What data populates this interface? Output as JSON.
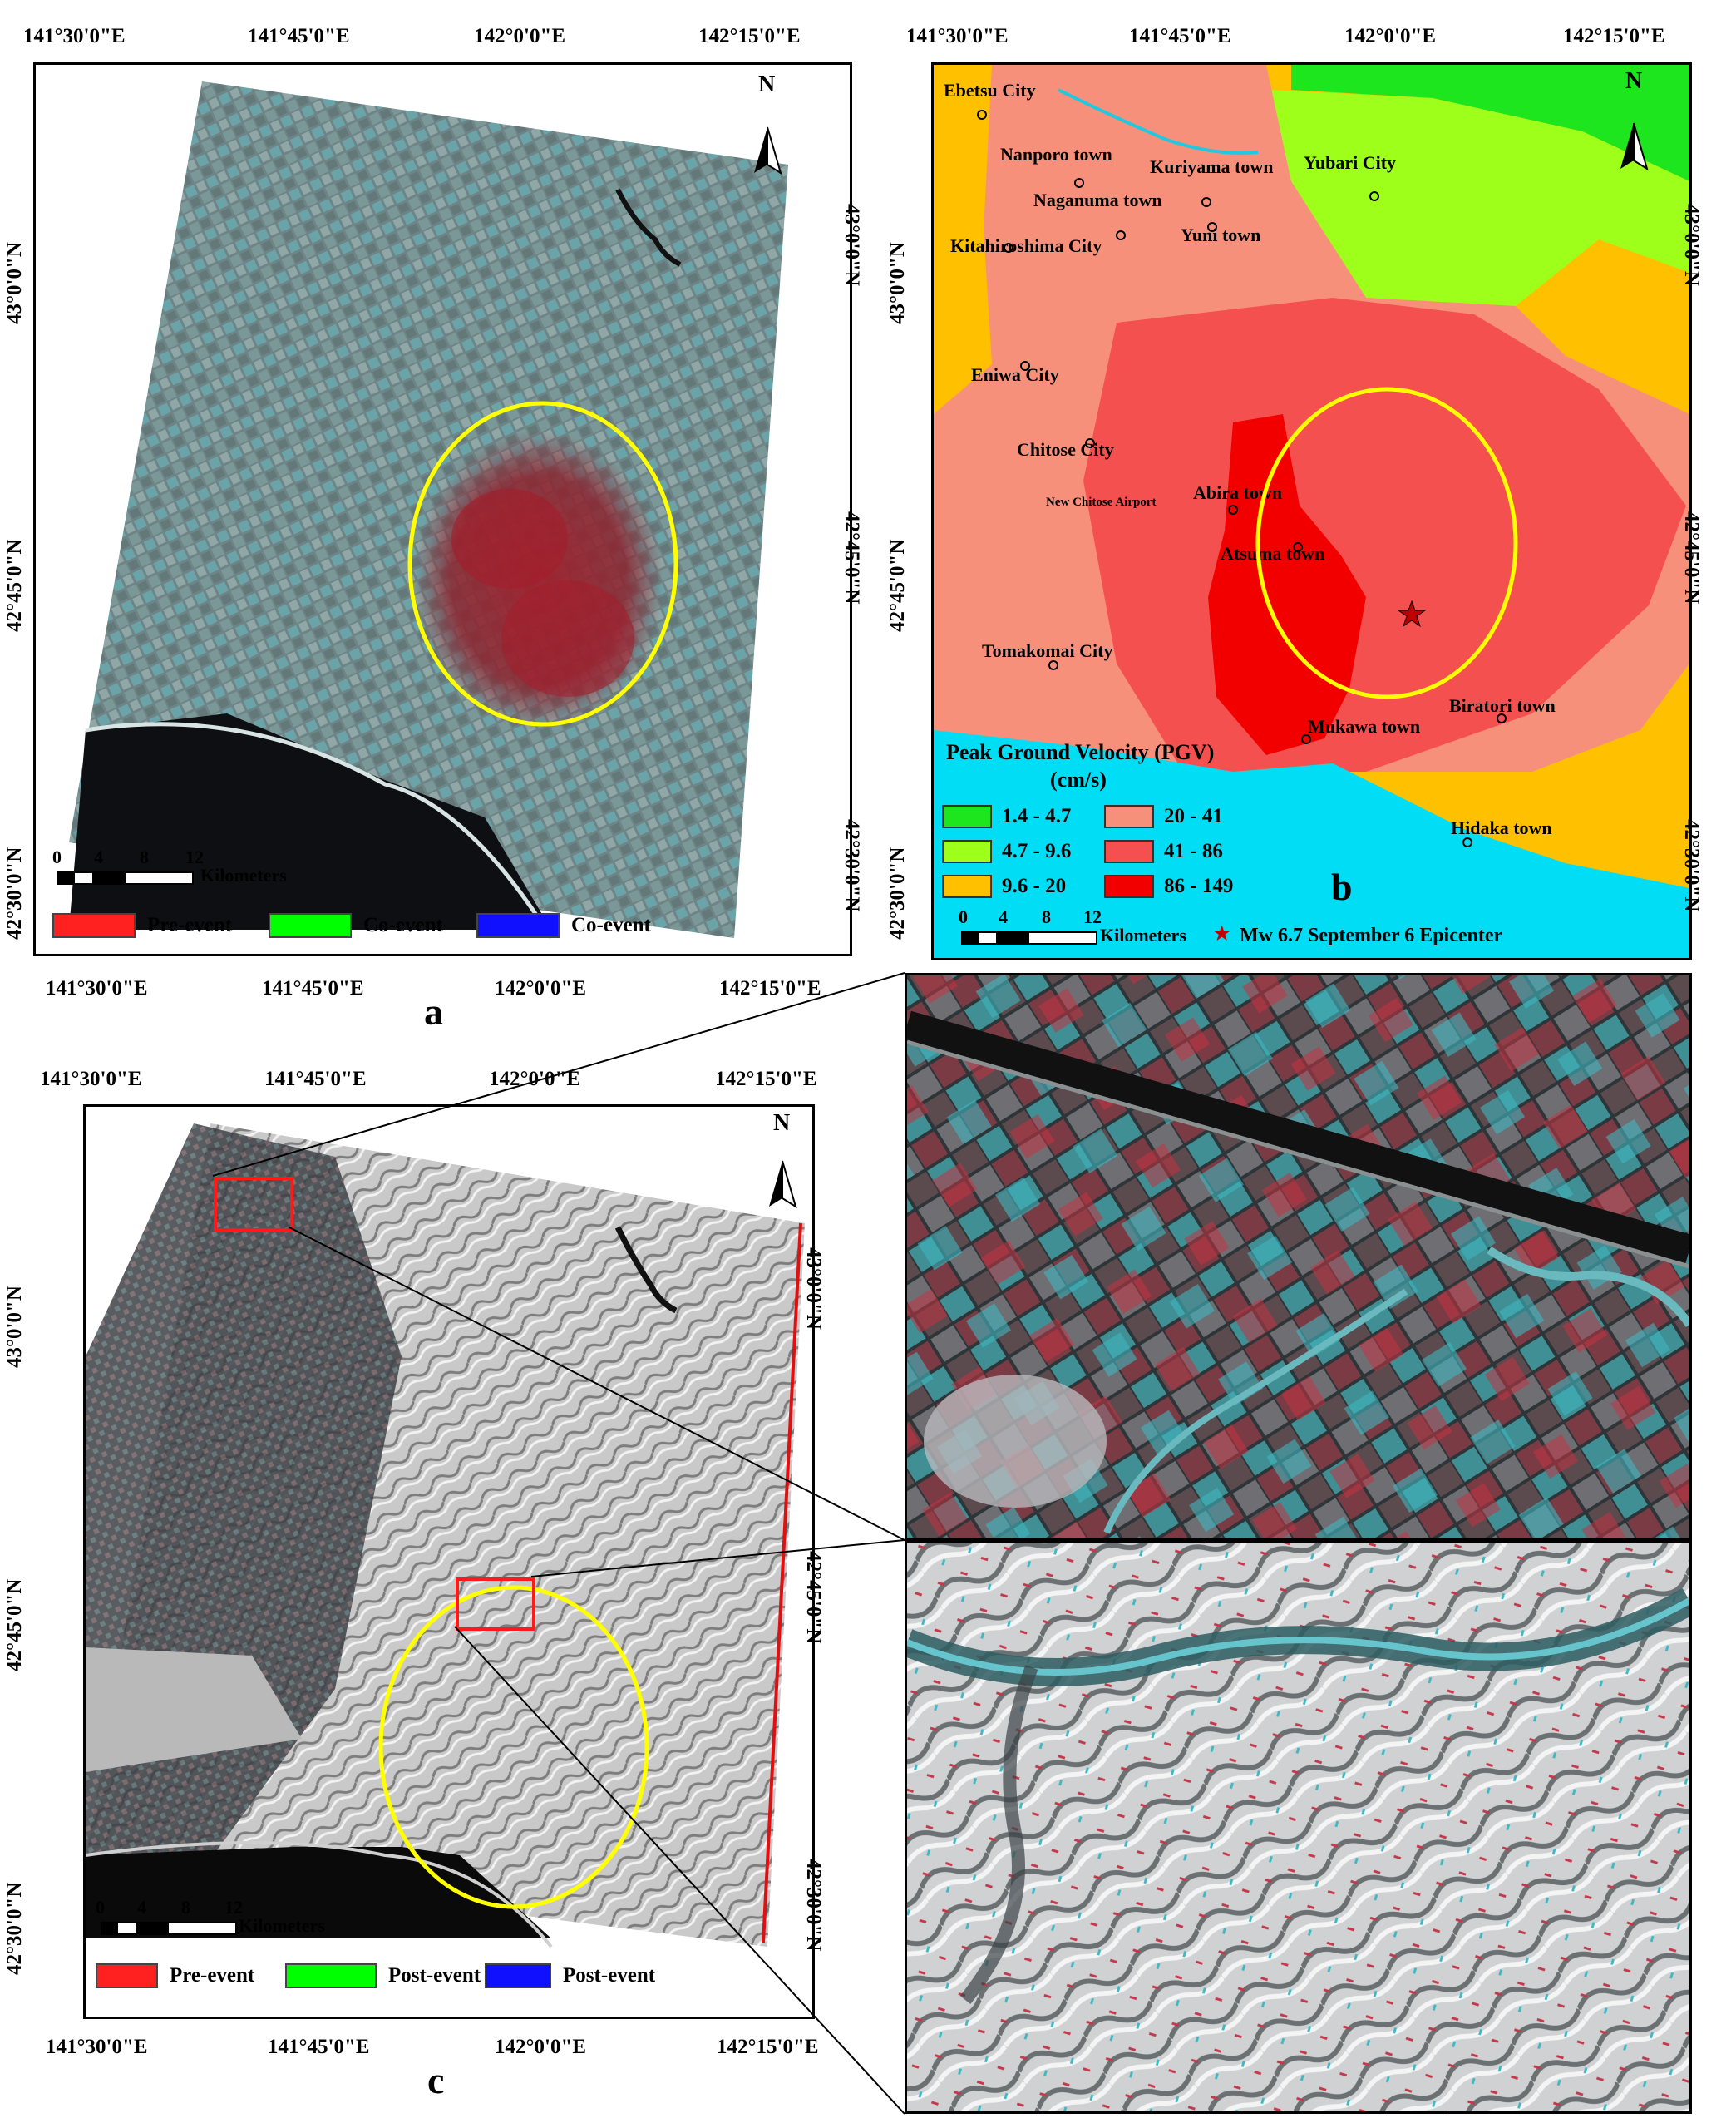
{
  "panel_a": {
    "letter": "a",
    "top_lon_ticks": [
      "141°30'0\"E",
      "141°45'0\"E",
      "142°0'0\"E",
      "142°15'0\"E"
    ],
    "bottom_lon_ticks": [
      "141°30'0\"E",
      "141°45'0\"E",
      "142°0'0\"E",
      "142°15'0\"E"
    ],
    "left_lat_ticks": [
      "43°0'0\"N",
      "42°45'0\"N",
      "42°30'0\"N"
    ],
    "right_lat_ticks": [
      "43°0'0\"N",
      "42°45'0\"N",
      "42°30'0\"N"
    ],
    "north": "N",
    "scale_ticks": [
      "0",
      "4",
      "8",
      "12"
    ],
    "scale_unit": "Kilometers",
    "legend": [
      {
        "label": "Pre-event",
        "color": "#ff2020"
      },
      {
        "label": "Co-event",
        "color": "#00ff00"
      },
      {
        "label": "Co-event",
        "color": "#1010ff"
      }
    ]
  },
  "panel_b": {
    "letter": "b",
    "top_lon_ticks": [
      "141°30'0\"E",
      "141°45'0\"E",
      "142°0'0\"E",
      "142°15'0\"E"
    ],
    "left_lat_ticks": [
      "43°0'0\"N",
      "42°45'0\"N",
      "42°30'0\"N"
    ],
    "right_lat_ticks": [
      "43°0'0\"N",
      "42°45'0\"N",
      "42°30'0\"N"
    ],
    "north": "N",
    "towns": [
      "Ebetsu City",
      "Nanporo town",
      "Kuriyama town",
      "Yubari City",
      "Naganuma town",
      "Yuni town",
      "Kitahiroshima City",
      "Eniwa City",
      "Chitose City",
      "New Chitose Airport",
      "Abira town",
      "Atsuma town",
      "Tomakomai City",
      "Mukawa town",
      "Biratori town",
      "Hidaka town"
    ],
    "legend_title_1": "Peak Ground Velocity (PGV)",
    "legend_title_2": "(cm/s)",
    "pgv_classes": [
      {
        "label": "1.4 - 4.7",
        "color": "#1ee61e"
      },
      {
        "label": "4.7 - 9.6",
        "color": "#9eff1a"
      },
      {
        "label": "9.6 - 20",
        "color": "#ffc000"
      },
      {
        "label": "20 - 41",
        "color": "#f7907a"
      },
      {
        "label": "41 - 86",
        "color": "#f55050"
      },
      {
        "label": "86 - 149",
        "color": "#f20000"
      }
    ],
    "scale_ticks": [
      "0",
      "4",
      "8",
      "12"
    ],
    "scale_unit": "Kilometers",
    "epicenter_label": "Mw 6.7  September 6 Epicenter",
    "colors": {
      "sea": "#00ddf5",
      "epicenter": "#c00000"
    }
  },
  "panel_c": {
    "letter": "c",
    "top_lon_ticks": [
      "141°30'0\"E",
      "141°45'0\"E",
      "142°0'0\"E",
      "142°15'0\"E"
    ],
    "bottom_lon_ticks": [
      "141°30'0\"E",
      "141°45'0\"E",
      "142°0'0\"E",
      "142°15'0\"E"
    ],
    "left_lat_ticks": [
      "43°0'0\"N",
      "42°45'0\"N",
      "42°30'0\"N"
    ],
    "right_lat_ticks": [
      "43°0'0\"N",
      "42°45'0\"N",
      "42°30'0\"N"
    ],
    "north": "N",
    "scale_ticks": [
      "0",
      "4",
      "8",
      "12"
    ],
    "scale_unit": "Kilometers",
    "legend": [
      {
        "label": "Pre-event",
        "color": "#ff2020"
      },
      {
        "label": "Post-event",
        "color": "#00ff00"
      },
      {
        "label": "Post-event",
        "color": "#1010ff"
      }
    ]
  }
}
